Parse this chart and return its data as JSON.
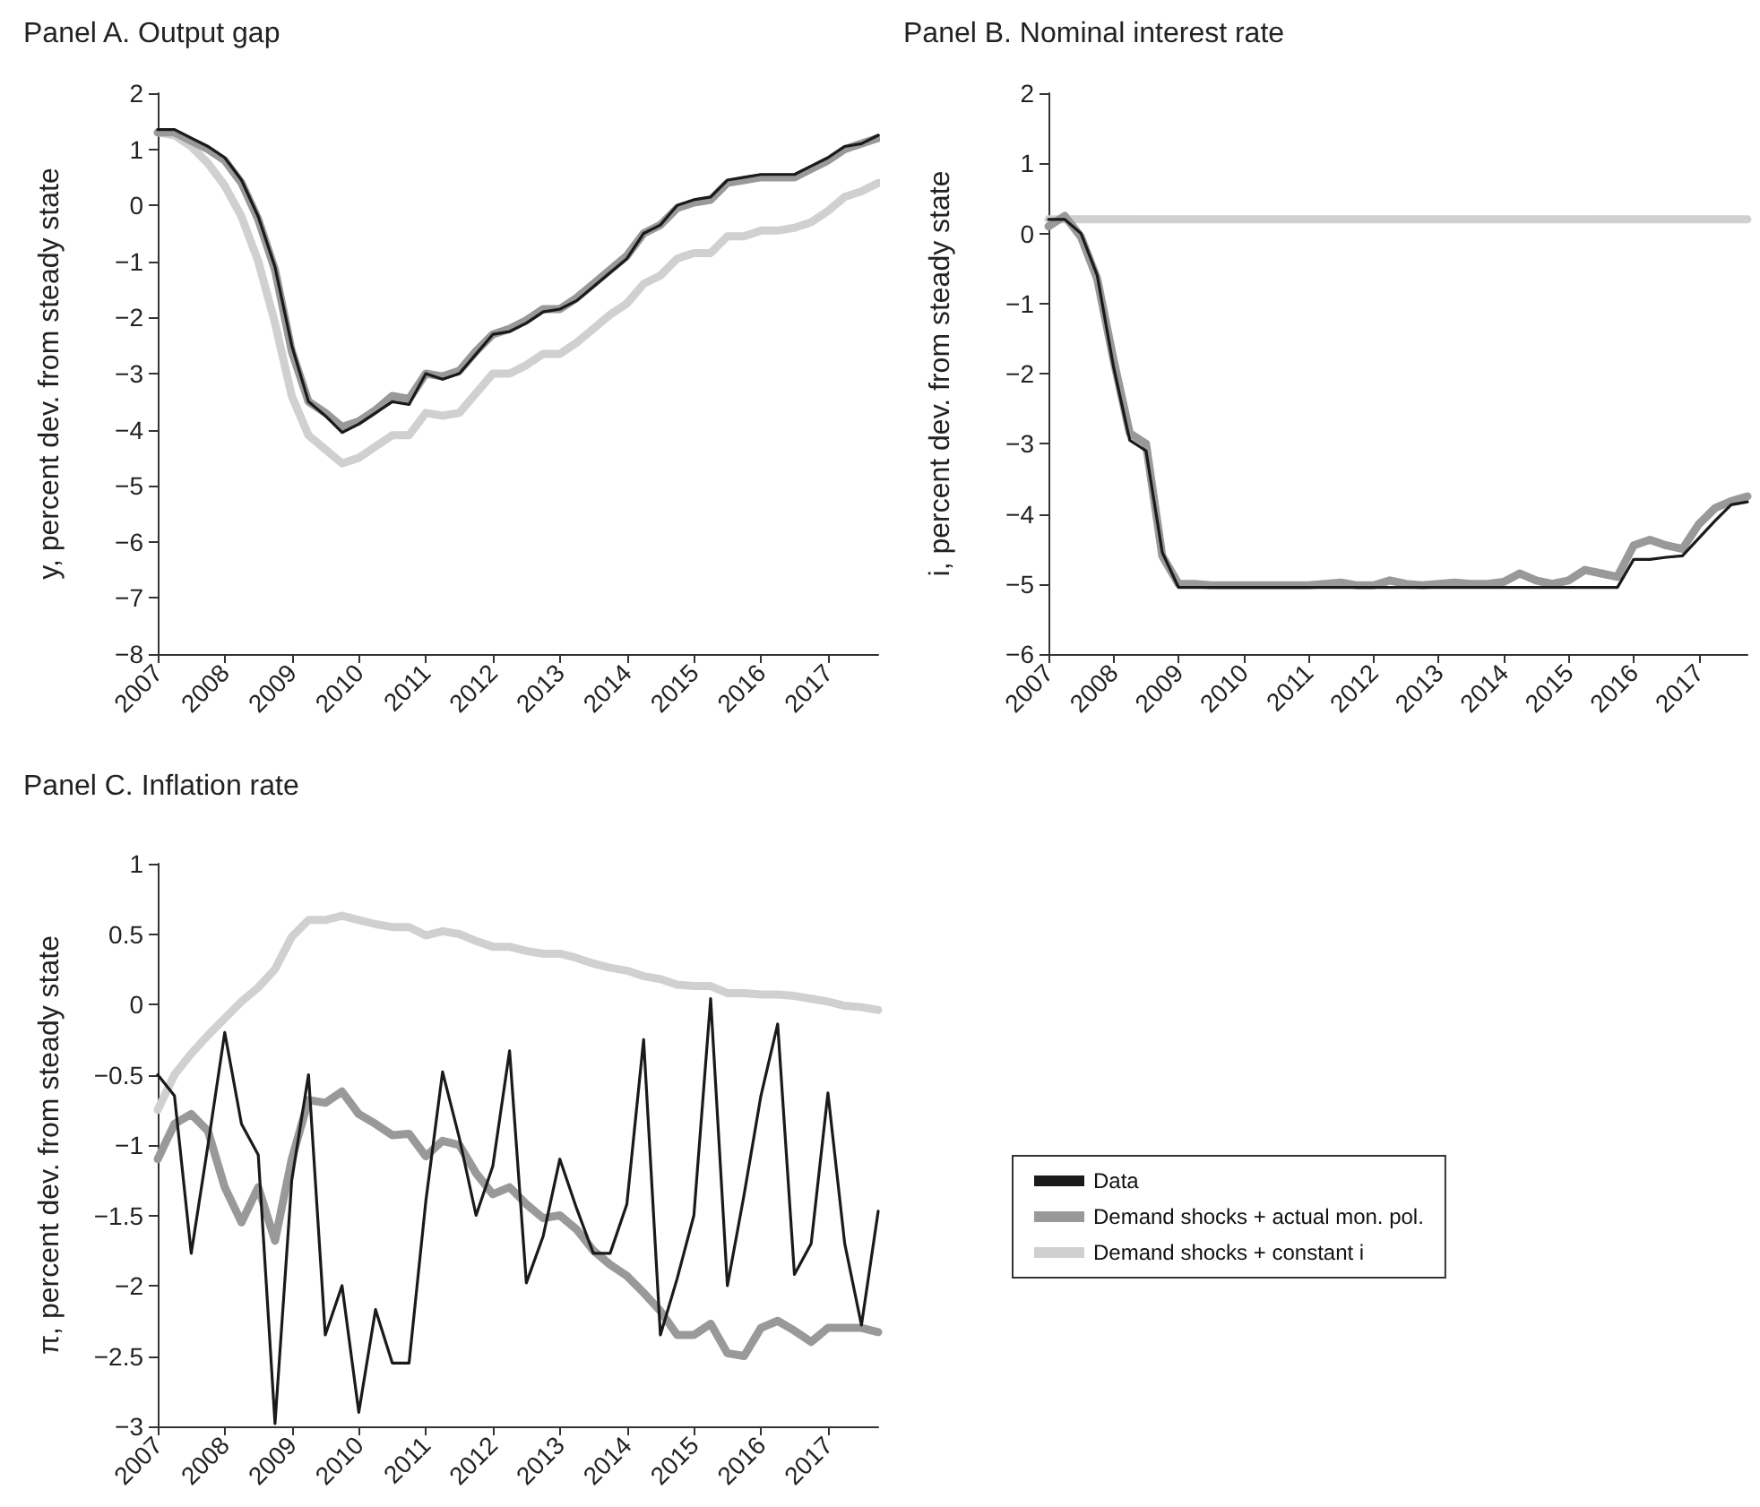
{
  "chart_data": [
    {
      "type": "line",
      "title": "Panel A. Output gap",
      "ylabel": "y, percent dev. from steady state",
      "x": [
        2007,
        2007.25,
        2007.5,
        2007.75,
        2008,
        2008.25,
        2008.5,
        2008.75,
        2009,
        2009.25,
        2009.5,
        2009.75,
        2010,
        2010.25,
        2010.5,
        2010.75,
        2011,
        2011.25,
        2011.5,
        2011.75,
        2012,
        2012.25,
        2012.5,
        2012.75,
        2013,
        2013.25,
        2013.5,
        2013.75,
        2014,
        2014.25,
        2014.5,
        2014.75,
        2015,
        2015.25,
        2015.5,
        2015.75,
        2016,
        2016.25,
        2016.5,
        2016.75,
        2017,
        2017.25,
        2017.5,
        2017.75
      ],
      "series": [
        {
          "color": "#1a1a1a",
          "values": [
            1.35,
            1.35,
            1.2,
            1.05,
            0.85,
            0.45,
            -0.2,
            -1.1,
            -2.5,
            -3.5,
            -3.75,
            -4.05,
            -3.9,
            -3.7,
            -3.5,
            -3.55,
            -3.0,
            -3.1,
            -3.0,
            -2.65,
            -2.3,
            -2.25,
            -2.1,
            -1.9,
            -1.85,
            -1.7,
            -1.45,
            -1.2,
            -0.95,
            -0.5,
            -0.35,
            0.0,
            0.1,
            0.15,
            0.45,
            0.5,
            0.55,
            0.55,
            0.55,
            0.7,
            0.85,
            1.05,
            1.1,
            1.25
          ]
        },
        {
          "color": "#999999",
          "values": [
            1.3,
            1.3,
            1.15,
            1.0,
            0.8,
            0.4,
            -0.25,
            -1.15,
            -2.6,
            -3.5,
            -3.7,
            -3.95,
            -3.85,
            -3.65,
            -3.4,
            -3.45,
            -3.0,
            -3.05,
            -2.95,
            -2.6,
            -2.3,
            -2.2,
            -2.05,
            -1.85,
            -1.85,
            -1.65,
            -1.4,
            -1.15,
            -0.9,
            -0.5,
            -0.35,
            -0.05,
            0.05,
            0.1,
            0.4,
            0.45,
            0.5,
            0.5,
            0.5,
            0.65,
            0.8,
            1.0,
            1.1,
            1.2
          ]
        },
        {
          "color": "#d0d0d0",
          "values": [
            1.3,
            1.25,
            1.05,
            0.75,
            0.35,
            -0.2,
            -1.0,
            -2.1,
            -3.4,
            -4.1,
            -4.35,
            -4.6,
            -4.5,
            -4.3,
            -4.1,
            -4.1,
            -3.7,
            -3.75,
            -3.7,
            -3.35,
            -3.0,
            -3.0,
            -2.85,
            -2.65,
            -2.65,
            -2.45,
            -2.2,
            -1.95,
            -1.75,
            -1.4,
            -1.25,
            -0.95,
            -0.85,
            -0.85,
            -0.55,
            -0.55,
            -0.45,
            -0.45,
            -0.4,
            -0.3,
            -0.1,
            0.15,
            0.25,
            0.4
          ]
        }
      ],
      "xlim": [
        2007,
        2017.75
      ],
      "xticks": [
        2007,
        2008,
        2009,
        2010,
        2011,
        2012,
        2013,
        2014,
        2015,
        2016,
        2017
      ],
      "ylim": [
        -8,
        2
      ],
      "yticks": [
        -8,
        -7,
        -6,
        -5,
        -4,
        -3,
        -2,
        -1,
        0,
        1,
        2
      ],
      "grid": false,
      "legend": false,
      "marker": "none"
    },
    {
      "type": "line",
      "title": "Panel B. Nominal interest rate",
      "ylabel": "i, percent dev. from steady state",
      "x": [
        2007,
        2007.25,
        2007.5,
        2007.75,
        2008,
        2008.25,
        2008.5,
        2008.75,
        2009,
        2009.25,
        2009.5,
        2009.75,
        2010,
        2010.25,
        2010.5,
        2010.75,
        2011,
        2011.25,
        2011.5,
        2011.75,
        2012,
        2012.25,
        2012.5,
        2012.75,
        2013,
        2013.25,
        2013.5,
        2013.75,
        2014,
        2014.25,
        2014.5,
        2014.75,
        2015,
        2015.25,
        2015.5,
        2015.75,
        2016,
        2016.25,
        2016.5,
        2016.75,
        2017,
        2017.25,
        2017.5,
        2017.75
      ],
      "series": [
        {
          "color": "#1a1a1a",
          "values": [
            0.2,
            0.2,
            0.0,
            -0.6,
            -1.9,
            -2.95,
            -3.1,
            -4.55,
            -5.05,
            -5.05,
            -5.05,
            -5.05,
            -5.05,
            -5.05,
            -5.05,
            -5.05,
            -5.05,
            -5.05,
            -5.05,
            -5.05,
            -5.05,
            -5.05,
            -5.05,
            -5.05,
            -5.05,
            -5.05,
            -5.05,
            -5.05,
            -5.05,
            -5.05,
            -5.05,
            -5.05,
            -5.05,
            -5.05,
            -5.05,
            -5.05,
            -4.65,
            -4.65,
            -4.62,
            -4.6,
            -4.35,
            -4.1,
            -3.87,
            -3.83
          ]
        },
        {
          "color": "#999999",
          "values": [
            0.1,
            0.25,
            -0.05,
            -0.65,
            -1.8,
            -2.85,
            -3.0,
            -4.6,
            -5.0,
            -5.0,
            -5.02,
            -5.02,
            -5.02,
            -5.02,
            -5.02,
            -5.02,
            -5.02,
            -5.0,
            -4.98,
            -5.02,
            -5.02,
            -4.95,
            -5.0,
            -5.02,
            -5.0,
            -4.98,
            -5.0,
            -5.0,
            -4.97,
            -4.85,
            -4.95,
            -5.0,
            -4.95,
            -4.8,
            -4.85,
            -4.9,
            -4.45,
            -4.37,
            -4.45,
            -4.5,
            -4.15,
            -3.92,
            -3.82,
            -3.75
          ]
        },
        {
          "color": "#d0d0d0",
          "values": [
            0.2,
            0.2,
            0.2,
            0.2,
            0.2,
            0.2,
            0.2,
            0.2,
            0.2,
            0.2,
            0.2,
            0.2,
            0.2,
            0.2,
            0.2,
            0.2,
            0.2,
            0.2,
            0.2,
            0.2,
            0.2,
            0.2,
            0.2,
            0.2,
            0.2,
            0.2,
            0.2,
            0.2,
            0.2,
            0.2,
            0.2,
            0.2,
            0.2,
            0.2,
            0.2,
            0.2,
            0.2,
            0.2,
            0.2,
            0.2,
            0.2,
            0.2,
            0.2,
            0.2
          ]
        }
      ],
      "xlim": [
        2007,
        2017.75
      ],
      "xticks": [
        2007,
        2008,
        2009,
        2010,
        2011,
        2012,
        2013,
        2014,
        2015,
        2016,
        2017
      ],
      "ylim": [
        -6,
        2
      ],
      "yticks": [
        -6,
        -5,
        -4,
        -3,
        -2,
        -1,
        0,
        1,
        2
      ],
      "grid": false,
      "legend": false,
      "marker": "none"
    },
    {
      "type": "line",
      "title": "Panel C. Inflation rate",
      "ylabel": "π, percent dev. from steady state",
      "x": [
        2007,
        2007.25,
        2007.5,
        2007.75,
        2008,
        2008.25,
        2008.5,
        2008.75,
        2009,
        2009.25,
        2009.5,
        2009.75,
        2010,
        2010.25,
        2010.5,
        2010.75,
        2011,
        2011.25,
        2011.5,
        2011.75,
        2012,
        2012.25,
        2012.5,
        2012.75,
        2013,
        2013.25,
        2013.5,
        2013.75,
        2014,
        2014.25,
        2014.5,
        2014.75,
        2015,
        2015.25,
        2015.5,
        2015.75,
        2016,
        2016.25,
        2016.5,
        2016.75,
        2017,
        2017.25,
        2017.5,
        2017.75
      ],
      "series": [
        {
          "name": "Data",
          "color": "#1a1a1a",
          "values": [
            -0.5,
            -0.65,
            -1.77,
            -1.0,
            -0.2,
            -0.85,
            -1.07,
            -2.98,
            -1.25,
            -0.5,
            -2.35,
            -2.0,
            -2.9,
            -2.17,
            -2.55,
            -2.55,
            -1.4,
            -0.48,
            -0.95,
            -1.5,
            -1.15,
            -0.33,
            -1.98,
            -1.65,
            -1.1,
            -1.45,
            -1.77,
            -1.77,
            -1.42,
            -0.25,
            -2.35,
            -1.95,
            -1.5,
            0.04,
            -2.0,
            -1.35,
            -0.65,
            -0.14,
            -1.92,
            -1.7,
            -0.63,
            -1.7,
            -2.28,
            -1.47
          ]
        },
        {
          "name": "Demand shocks + actual mon. pol.",
          "color": "#999999",
          "values": [
            -1.1,
            -0.85,
            -0.78,
            -0.9,
            -1.3,
            -1.55,
            -1.3,
            -1.68,
            -1.1,
            -0.68,
            -0.7,
            -0.62,
            -0.78,
            -0.85,
            -0.93,
            -0.92,
            -1.08,
            -0.97,
            -1.0,
            -1.2,
            -1.35,
            -1.3,
            -1.42,
            -1.52,
            -1.5,
            -1.6,
            -1.75,
            -1.85,
            -1.93,
            -2.05,
            -2.18,
            -2.35,
            -2.35,
            -2.27,
            -2.48,
            -2.5,
            -2.3,
            -2.25,
            -2.32,
            -2.4,
            -2.3,
            -2.3,
            -2.3,
            -2.33
          ]
        },
        {
          "name": "Demand shocks + constant i",
          "color": "#d0d0d0",
          "values": [
            -0.75,
            -0.5,
            -0.35,
            -0.22,
            -0.1,
            0.02,
            0.12,
            0.25,
            0.48,
            0.6,
            0.6,
            0.63,
            0.6,
            0.57,
            0.55,
            0.55,
            0.49,
            0.52,
            0.5,
            0.45,
            0.41,
            0.41,
            0.38,
            0.36,
            0.36,
            0.33,
            0.29,
            0.26,
            0.24,
            0.2,
            0.18,
            0.14,
            0.13,
            0.13,
            0.08,
            0.08,
            0.07,
            0.07,
            0.06,
            0.04,
            0.02,
            -0.01,
            -0.02,
            -0.04
          ]
        }
      ],
      "xlim": [
        2007,
        2017.75
      ],
      "xticks": [
        2007,
        2008,
        2009,
        2010,
        2011,
        2012,
        2013,
        2014,
        2015,
        2016,
        2017
      ],
      "ylim": [
        -3,
        1
      ],
      "yticks": [
        -3,
        -2.5,
        -2,
        -1.5,
        -1,
        -0.5,
        0,
        0.5,
        1
      ],
      "grid": false,
      "legend": "right",
      "marker": "none"
    }
  ]
}
